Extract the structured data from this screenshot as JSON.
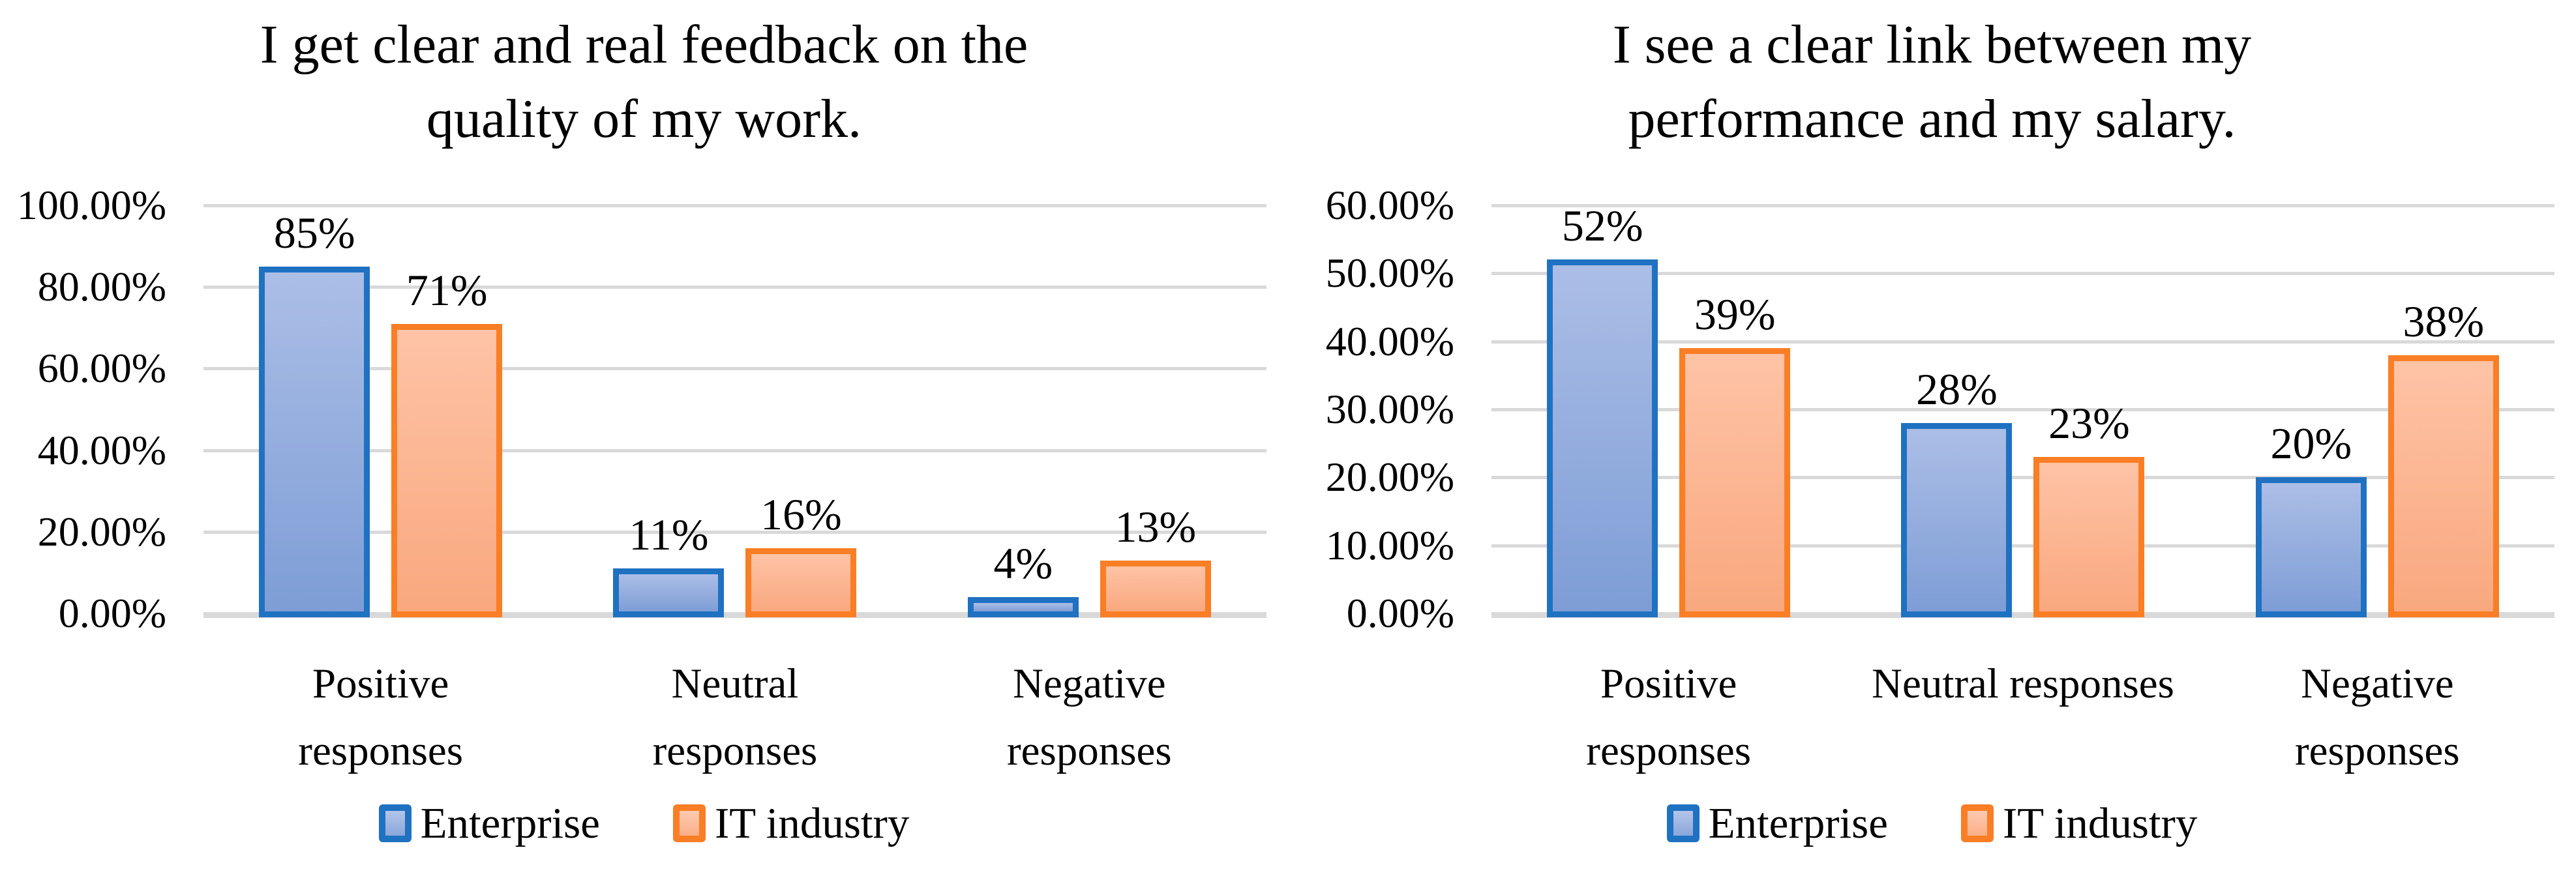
{
  "figure": {
    "background": "#ffffff",
    "grid_color": "#D9D9D9",
    "text_color": "#000000"
  },
  "colors": {
    "enterprise_border": "#1F71C1",
    "enterprise_fill_top": "#ABBEE6",
    "enterprise_fill_bottom": "#7E9DD6",
    "it_industry_border": "#F97E25",
    "it_industry_fill_top": "#FEC3A6",
    "it_industry_fill_bottom": "#F9A87E"
  },
  "chart_data": [
    {
      "type": "bar",
      "title": "I get clear and real feedback on the quality of my work.",
      "title_text": "I get clear and real feedback on the\nquality of my work.",
      "categories": [
        "Positive responses",
        "Neutral responses",
        "Negative responses"
      ],
      "category_label_text": [
        "Positive\nresponses",
        "Neutral\nresponses",
        "Negative\nresponses"
      ],
      "series": [
        {
          "name": "Enterprise",
          "values": [
            85,
            11,
            4
          ],
          "data_labels": [
            "85%",
            "11%",
            "4%"
          ]
        },
        {
          "name": "IT industry",
          "values": [
            71,
            16,
            13
          ],
          "data_labels": [
            "71%",
            "16%",
            "13%"
          ]
        }
      ],
      "xlabel": "",
      "ylabel": "",
      "ylim": [
        0,
        100
      ],
      "y_tick_step": 20,
      "y_tick_labels": [
        "100.00%",
        "80.00%",
        "60.00%",
        "40.00%",
        "20.00%",
        "0.00%"
      ],
      "grid": true,
      "legend_position": "bottom",
      "legend_entries": [
        "Enterprise",
        "IT industry"
      ]
    },
    {
      "type": "bar",
      "title": "I see a clear link between my performance and my salary.",
      "title_text": "I see a clear link between my\nperformance and my salary.",
      "categories": [
        "Positive responses",
        "Neutral responses",
        "Negative responses"
      ],
      "category_label_text": [
        "Positive\nresponses",
        "Neutral responses",
        "Negative\nresponses"
      ],
      "series": [
        {
          "name": "Enterprise",
          "values": [
            52,
            28,
            20
          ],
          "data_labels": [
            "52%",
            "28%",
            "20%"
          ]
        },
        {
          "name": "IT industry",
          "values": [
            39,
            23,
            38
          ],
          "data_labels": [
            "39%",
            "23%",
            "38%"
          ]
        }
      ],
      "xlabel": "",
      "ylabel": "",
      "ylim": [
        0,
        60
      ],
      "y_tick_step": 10,
      "y_tick_labels": [
        "60.00%",
        "50.00%",
        "40.00%",
        "30.00%",
        "20.00%",
        "10.00%",
        "0.00%"
      ],
      "grid": true,
      "legend_position": "bottom",
      "legend_entries": [
        "Enterprise",
        "IT industry"
      ]
    }
  ]
}
